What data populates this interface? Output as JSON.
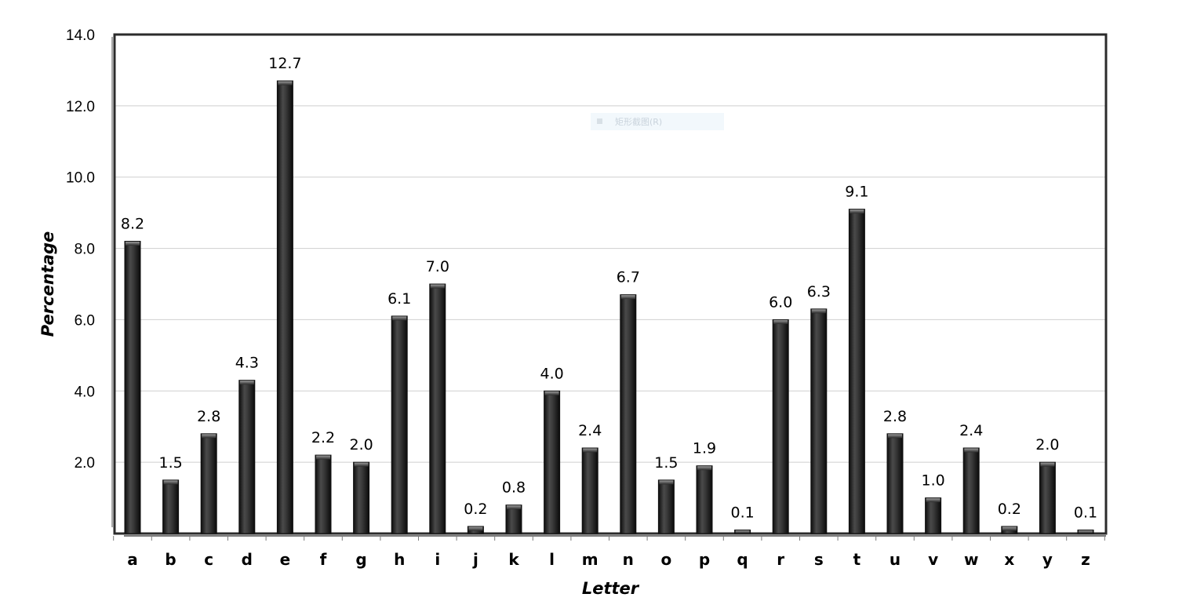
{
  "chart_data": {
    "type": "bar",
    "title": "",
    "xlabel": "Letter",
    "ylabel": "Percentage",
    "ylim": [
      0,
      14
    ],
    "yticks": [
      "2.0",
      "4.0",
      "6.0",
      "8.0",
      "10.0",
      "12.0",
      "14.0"
    ],
    "grid": true,
    "legend": "none",
    "categories": [
      "a",
      "b",
      "c",
      "d",
      "e",
      "f",
      "g",
      "h",
      "i",
      "j",
      "k",
      "l",
      "m",
      "n",
      "o",
      "p",
      "q",
      "r",
      "s",
      "t",
      "u",
      "v",
      "w",
      "x",
      "y",
      "z"
    ],
    "values": [
      8.2,
      1.5,
      2.8,
      4.3,
      12.7,
      2.2,
      2.0,
      6.1,
      7.0,
      0.2,
      0.8,
      4.0,
      2.4,
      6.7,
      1.5,
      1.9,
      0.1,
      6.0,
      6.3,
      9.1,
      2.8,
      1.0,
      2.4,
      0.2,
      2.0,
      0.1
    ],
    "value_labels": [
      "8.2",
      "1.5",
      "2.8",
      "4.3",
      "12.7",
      "2.2",
      "2.0",
      "6.1",
      "7.0",
      "0.2",
      "0.8",
      "4.0",
      "2.4",
      "6.7",
      "1.5",
      "1.9",
      "0.1",
      "6.0",
      "6.3",
      "9.1",
      "2.8",
      "1.0",
      "2.4",
      "0.2",
      "2.0",
      "0.1"
    ],
    "bar_color": "#2a2a2a"
  },
  "overlay": {
    "watermark_text": "矩形截图(R)"
  }
}
